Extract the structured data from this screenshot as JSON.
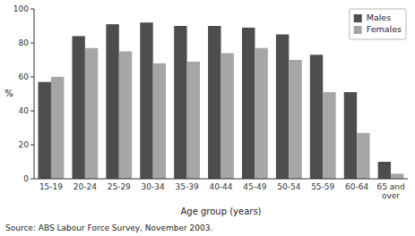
{
  "chart_data": {
    "type": "bar",
    "categories": [
      "15-19",
      "20-24",
      "25-29",
      "30-34",
      "35-39",
      "40-44",
      "45-49",
      "50-54",
      "55-59",
      "60-64",
      "65 and\nover"
    ],
    "series": [
      {
        "name": "Males",
        "color": "#4d4d4d",
        "values": [
          57,
          84,
          91,
          92,
          90,
          90,
          89,
          85,
          73,
          51,
          10
        ]
      },
      {
        "name": "Females",
        "color": "#a6a6a6",
        "values": [
          60,
          77,
          75,
          68,
          69,
          74,
          77,
          70,
          51,
          27,
          3
        ]
      }
    ],
    "xlabel": "Age group (years)",
    "ylabel": "%",
    "ylim": [
      0,
      100
    ],
    "yticks": [
      0,
      20,
      40,
      60,
      80,
      100
    ],
    "grid": false,
    "legend": "upper right",
    "annotations": [
      "Source: ABS Labour Force Survey, November 2003."
    ]
  }
}
